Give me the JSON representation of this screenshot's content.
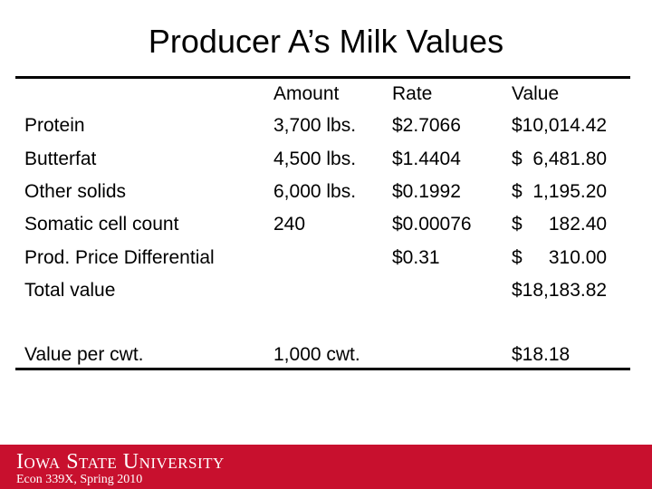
{
  "slide": {
    "title": "Producer A’s Milk Values"
  },
  "table": {
    "headers": {
      "label": "",
      "amount": "Amount",
      "rate": "Rate",
      "value": "Value"
    },
    "rows": [
      {
        "label": "Protein",
        "amount": "3,700 lbs.",
        "rate": "$2.7066",
        "value": "$10,014.42"
      },
      {
        "label": "Butterfat",
        "amount": "4,500 lbs.",
        "rate": "$1.4404",
        "value": "$  6,481.80"
      },
      {
        "label": "Other solids",
        "amount": "6,000 lbs.",
        "rate": "$0.1992",
        "value": "$  1,195.20"
      },
      {
        "label": "Somatic cell count",
        "amount": "240",
        "rate": "$0.00076",
        "value": "$     182.40"
      },
      {
        "label": "Prod. Price Differential",
        "amount": "",
        "rate": "$0.31",
        "value": "$     310.00"
      },
      {
        "label": "Total value",
        "amount": "",
        "rate": "",
        "value": "$18,183.82"
      },
      {
        "label": "Value per cwt.",
        "amount": "1,000 cwt.",
        "rate": "",
        "value": "$18.18"
      }
    ]
  },
  "footer": {
    "brand": "Iowa State University",
    "course": "Econ 339X, Spring 2010",
    "color": "#c8102e"
  }
}
